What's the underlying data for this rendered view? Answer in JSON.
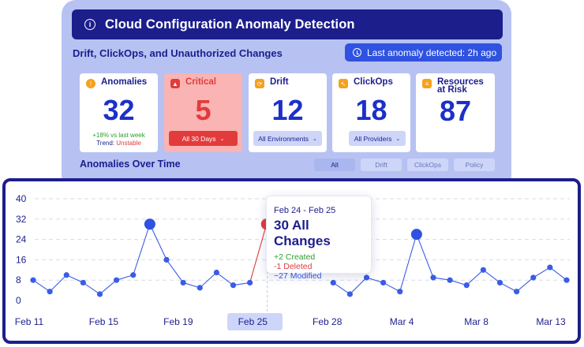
{
  "header": {
    "title": "Cloud Configuration Anomaly Detection",
    "subtitle": "Drift, ClickOps, and Unauthorized Changes",
    "last_detected": "Last anomaly detected: 2h ago"
  },
  "cards": {
    "anomalies": {
      "label": "Anomalies",
      "value": "32",
      "trend_change": "+18% vs last week",
      "trend_label": "Trend: ",
      "trend_value": "Unstable"
    },
    "critical": {
      "label": "Critical",
      "value": "5",
      "dropdown": "All 30 Days"
    },
    "drift": {
      "label": "Drift",
      "value": "12",
      "dropdown": "All Environments"
    },
    "clickops": {
      "label": "ClickOps",
      "value": "18",
      "dropdown": "All Providers"
    },
    "risk": {
      "label_line1": "Resources",
      "label_line2": "at Risk",
      "value": "87"
    }
  },
  "section": {
    "title": "Anomalies Over Time",
    "filters": [
      "All",
      "Drift",
      "ClickOps",
      "Policy"
    ],
    "active_filter": "All"
  },
  "tooltip": {
    "date": "Feb 24 - Feb 25",
    "main": "30 All Changes",
    "created": "+2 Created",
    "deleted": "-1 Deleted",
    "modified": "~27 Modified"
  },
  "colors": {
    "navy": "#1c1e8c",
    "blue": "#2f52e0",
    "red": "#e23b3b",
    "green": "#2ca02c"
  },
  "chart_data": {
    "type": "line",
    "ylim": [
      0,
      40
    ],
    "yticks": [
      0,
      8,
      16,
      24,
      32,
      40
    ],
    "xtick_labels": [
      "Feb 11",
      "Feb 15",
      "Feb 19",
      "Feb 25",
      "Feb 28",
      "Mar 4",
      "Mar 8",
      "Mar 13"
    ],
    "selected_tick": "Feb 25",
    "series": [
      {
        "values": [
          8,
          3.5,
          10,
          7,
          2.5,
          8,
          10,
          30,
          16,
          7,
          5,
          11,
          6,
          7,
          30,
          null,
          null,
          null,
          7,
          2.5,
          9,
          7,
          3.5,
          26,
          9,
          8,
          6,
          12,
          7,
          3.5,
          9,
          13,
          8
        ]
      }
    ],
    "highlight_points": [
      {
        "index": 7,
        "value": 30,
        "color": "#2f52e0"
      },
      {
        "index": 14,
        "value": 30,
        "color": "#e23b3b"
      },
      {
        "index": 23,
        "value": 26,
        "color": "#2f52e0"
      }
    ],
    "grid": true
  }
}
